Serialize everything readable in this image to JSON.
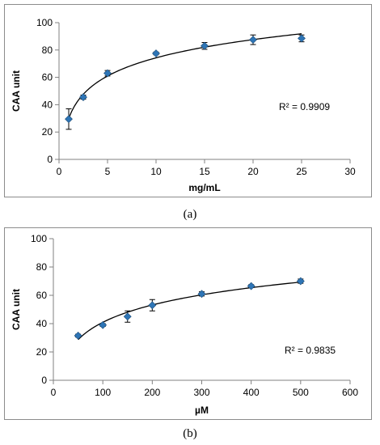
{
  "chart_data": [
    {
      "id": "a",
      "type": "scatter",
      "caption": "(a)",
      "xlabel": "mg/mL",
      "ylabel": "CAA unit",
      "xlim": [
        0,
        30
      ],
      "ylim": [
        0,
        100
      ],
      "xticks": [
        0,
        5,
        10,
        15,
        20,
        25,
        30
      ],
      "yticks": [
        0,
        20,
        40,
        60,
        80,
        100
      ],
      "grid": false,
      "marker_color": "#2e75b6",
      "trendline": "logarithmic",
      "r2_label": "R² = 0.9909",
      "points": [
        {
          "x": 1,
          "y": 29.5,
          "err": 7.5
        },
        {
          "x": 2.5,
          "y": 45.5,
          "err": 1.5
        },
        {
          "x": 5,
          "y": 63,
          "err": 2
        },
        {
          "x": 10,
          "y": 77.5,
          "err": 1
        },
        {
          "x": 15,
          "y": 83,
          "err": 2.5
        },
        {
          "x": 20,
          "y": 87.5,
          "err": 3.5
        },
        {
          "x": 25,
          "y": 88.5,
          "err": 2.5
        }
      ]
    },
    {
      "id": "b",
      "type": "scatter",
      "caption": "(b)",
      "xlabel": "µM",
      "ylabel": "CAA unit",
      "xlim": [
        0,
        600
      ],
      "ylim": [
        0,
        100
      ],
      "xticks": [
        0,
        100,
        200,
        300,
        400,
        500,
        600
      ],
      "yticks": [
        0,
        20,
        40,
        60,
        80,
        100
      ],
      "grid": false,
      "marker_color": "#2e75b6",
      "trendline": "logarithmic",
      "r2_label": "R² = 0.9835",
      "points": [
        {
          "x": 50,
          "y": 31.5,
          "err": 1
        },
        {
          "x": 100,
          "y": 39,
          "err": 1
        },
        {
          "x": 150,
          "y": 45,
          "err": 4
        },
        {
          "x": 200,
          "y": 53,
          "err": 4
        },
        {
          "x": 300,
          "y": 61,
          "err": 1.5
        },
        {
          "x": 400,
          "y": 66.5,
          "err": 1
        },
        {
          "x": 500,
          "y": 70,
          "err": 1.5
        }
      ]
    }
  ]
}
